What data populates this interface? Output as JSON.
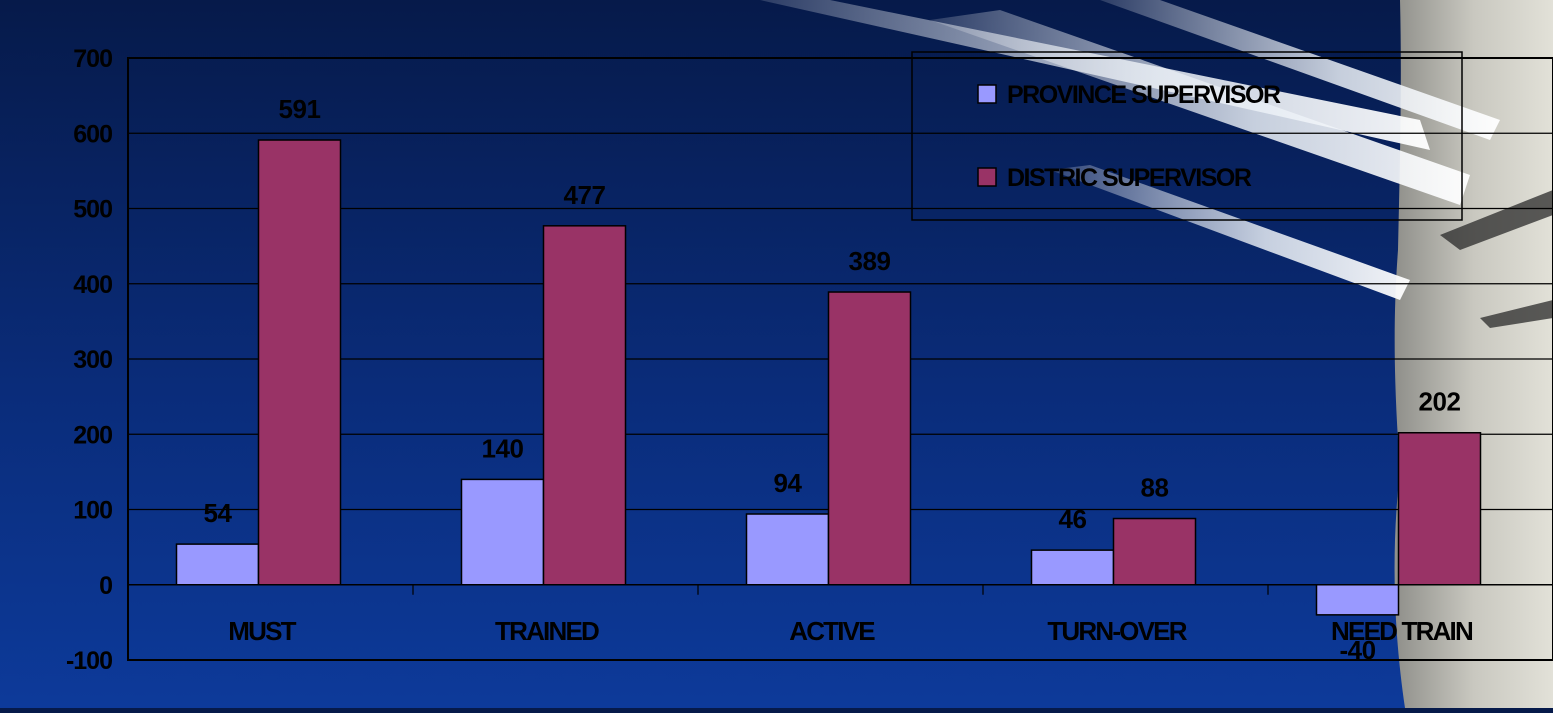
{
  "chart_data": {
    "type": "bar",
    "categories": [
      "MUST",
      "TRAINED",
      "ACTIVE",
      "TURN-OVER",
      "NEED TRAIN"
    ],
    "series": [
      {
        "name": "PROVINCE SUPERVISOR",
        "values": [
          54,
          140,
          94,
          46,
          -40
        ],
        "color": "#9999ff"
      },
      {
        "name": "DISTRIC SUPERVISOR",
        "values": [
          591,
          477,
          389,
          88,
          202
        ],
        "color": "#993366"
      }
    ],
    "ylim": [
      -100,
      700
    ],
    "yticks": [
      700,
      600,
      500,
      400,
      300,
      200,
      100,
      0,
      -100
    ],
    "grid": true,
    "legend": "top-right"
  }
}
